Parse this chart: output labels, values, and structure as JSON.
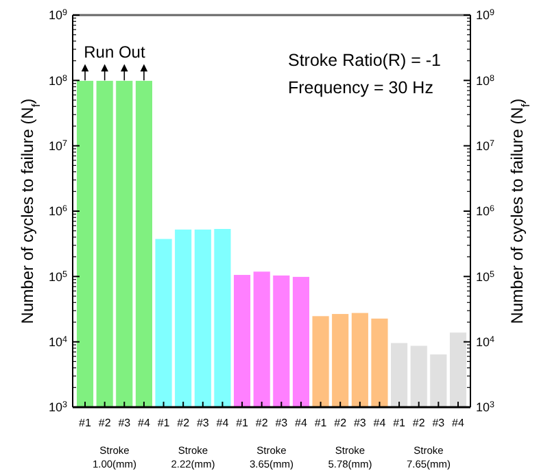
{
  "chart_data": {
    "type": "bar",
    "ylabel": "Number of cycles to failure (N$_{f}$)",
    "y2label": "Number of cycles to failure (N$_{f}$)",
    "categories": [
      "#1",
      "#2",
      "#3",
      "#4",
      "#1",
      "#2",
      "#3",
      "#4",
      "#1",
      "#2",
      "#3",
      "#4",
      "#1",
      "#2",
      "#3",
      "#4",
      "#1",
      "#2",
      "#3",
      "#4"
    ],
    "values": [
      100000000,
      100000000,
      100000000,
      100000000,
      380000,
      530000,
      530000,
      540000,
      107000,
      120000,
      105000,
      100000,
      25000,
      27000,
      28000,
      23000,
      9700,
      8800,
      6500,
      14000
    ],
    "colors": [
      "#80f080",
      "#80f080",
      "#80f080",
      "#80f080",
      "#80ffff",
      "#80ffff",
      "#80ffff",
      "#80ffff",
      "#ff80ff",
      "#ff80ff",
      "#ff80ff",
      "#ff80ff",
      "#ffc080",
      "#ffc080",
      "#ffc080",
      "#ffc080",
      "#e0e0e0",
      "#e0e0e0",
      "#e0e0e0",
      "#e0e0e0"
    ],
    "log": "y",
    "ylim": [
      1000,
      1000000000
    ],
    "yticks": [
      {
        "value": 1000,
        "label": "10$^{3}$"
      },
      {
        "value": 10000,
        "label": "10$^{4}$"
      },
      {
        "value": 100000,
        "label": "10$^{5}$"
      },
      {
        "value": 1000000,
        "label": "10$^{6}$"
      },
      {
        "value": 10000000,
        "label": "10$^{7}$"
      },
      {
        "value": 100000000,
        "label": "10$^{8}$"
      },
      {
        "value": 1000000000,
        "label": "10$^{9}$"
      }
    ],
    "annotations": [
      "Run Out",
      "Stroke Ratio(R) = -1",
      "Frequency = 30 Hz",
      "Stroke\n1.00(mm)",
      "Stroke\n2.22(mm)",
      "Stroke\n3.65(mm)",
      "Stroke\n5.78(mm)",
      "Stroke\n7.65(mm)"
    ]
  }
}
